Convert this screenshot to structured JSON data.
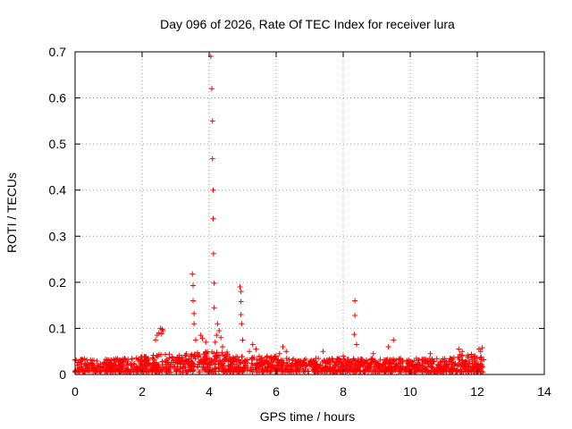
{
  "chart_data": {
    "type": "scatter",
    "title": "Day 096 of 2026, Rate Of TEC Index for receiver lura",
    "xlabel": "GPS time / hours",
    "ylabel": "ROTI / TECUs",
    "xlim": [
      0,
      14
    ],
    "ylim": [
      0,
      0.7
    ],
    "xticks": [
      0,
      2,
      4,
      6,
      8,
      10,
      12,
      14
    ],
    "yticks": [
      0,
      0.1,
      0.2,
      0.3,
      0.4,
      0.5,
      0.6,
      0.7
    ],
    "xtick_labels": [
      "0",
      "2",
      "4",
      "6",
      "8",
      "10",
      "12",
      "14"
    ],
    "ytick_labels": [
      "0",
      "0.1",
      "0.2",
      "0.3",
      "0.4",
      "0.5",
      "0.6",
      "0.7"
    ],
    "grid": true,
    "marker": "+",
    "color": "#ff0000",
    "series": [
      {
        "points": [
          [
            4.05,
            0.69
          ],
          [
            4.08,
            0.62
          ],
          [
            4.1,
            0.55
          ],
          [
            4.1,
            0.468
          ],
          [
            4.12,
            0.4
          ],
          [
            4.12,
            0.338
          ],
          [
            4.13,
            0.262
          ],
          [
            4.15,
            0.198
          ],
          [
            4.15,
            0.145
          ],
          [
            3.5,
            0.218
          ],
          [
            3.52,
            0.193
          ],
          [
            3.52,
            0.16
          ],
          [
            3.55,
            0.132
          ],
          [
            3.55,
            0.11
          ],
          [
            4.92,
            0.19
          ],
          [
            4.95,
            0.18
          ],
          [
            4.95,
            0.158
          ],
          [
            4.95,
            0.13
          ],
          [
            4.97,
            0.11
          ],
          [
            5.0,
            0.075
          ],
          [
            8.35,
            0.16
          ],
          [
            8.35,
            0.128
          ],
          [
            8.33,
            0.087
          ],
          [
            8.4,
            0.065
          ],
          [
            9.5,
            0.075
          ],
          [
            9.35,
            0.06
          ],
          [
            2.55,
            0.1
          ],
          [
            2.6,
            0.098
          ],
          [
            2.62,
            0.095
          ],
          [
            2.5,
            0.09
          ],
          [
            2.45,
            0.085
          ],
          [
            2.4,
            0.075
          ],
          [
            2.58,
            0.088
          ],
          [
            3.75,
            0.085
          ],
          [
            3.8,
            0.078
          ],
          [
            3.9,
            0.07
          ],
          [
            3.6,
            0.075
          ],
          [
            4.25,
            0.11
          ],
          [
            4.3,
            0.095
          ],
          [
            4.22,
            0.085
          ],
          [
            4.35,
            0.08
          ],
          [
            4.18,
            0.07
          ],
          [
            4.4,
            0.06
          ],
          [
            5.3,
            0.065
          ],
          [
            5.4,
            0.055
          ],
          [
            5.2,
            0.05
          ],
          [
            6.2,
            0.06
          ],
          [
            6.3,
            0.05
          ],
          [
            6.1,
            0.045
          ],
          [
            7.4,
            0.05
          ],
          [
            8.0,
            0.04
          ],
          [
            8.9,
            0.045
          ],
          [
            10.6,
            0.045
          ],
          [
            11.45,
            0.055
          ],
          [
            11.55,
            0.05
          ],
          [
            12.05,
            0.055
          ],
          [
            12.15,
            0.058
          ],
          [
            12.1,
            0.05
          ]
        ],
        "baseline": {
          "x_range": [
            0,
            12.2
          ],
          "segments": [
            {
              "x": [
                0,
                1.5
              ],
              "ymin": 0.005,
              "ymax": 0.035
            },
            {
              "x": [
                1.5,
                2.3
              ],
              "ymin": 0.005,
              "ymax": 0.04
            },
            {
              "x": [
                2.3,
                3.4
              ],
              "ymin": 0.005,
              "ymax": 0.045
            },
            {
              "x": [
                3.4,
                4.6
              ],
              "ymin": 0.005,
              "ymax": 0.05
            },
            {
              "x": [
                4.6,
                6.0
              ],
              "ymin": 0.005,
              "ymax": 0.04
            },
            {
              "x": [
                6.0,
                10.0
              ],
              "ymin": 0.005,
              "ymax": 0.035
            },
            {
              "x": [
                10.0,
                11.3
              ],
              "ymin": 0.005,
              "ymax": 0.035
            },
            {
              "x": [
                11.3,
                12.2
              ],
              "ymin": 0.005,
              "ymax": 0.045
            }
          ]
        }
      }
    ]
  }
}
